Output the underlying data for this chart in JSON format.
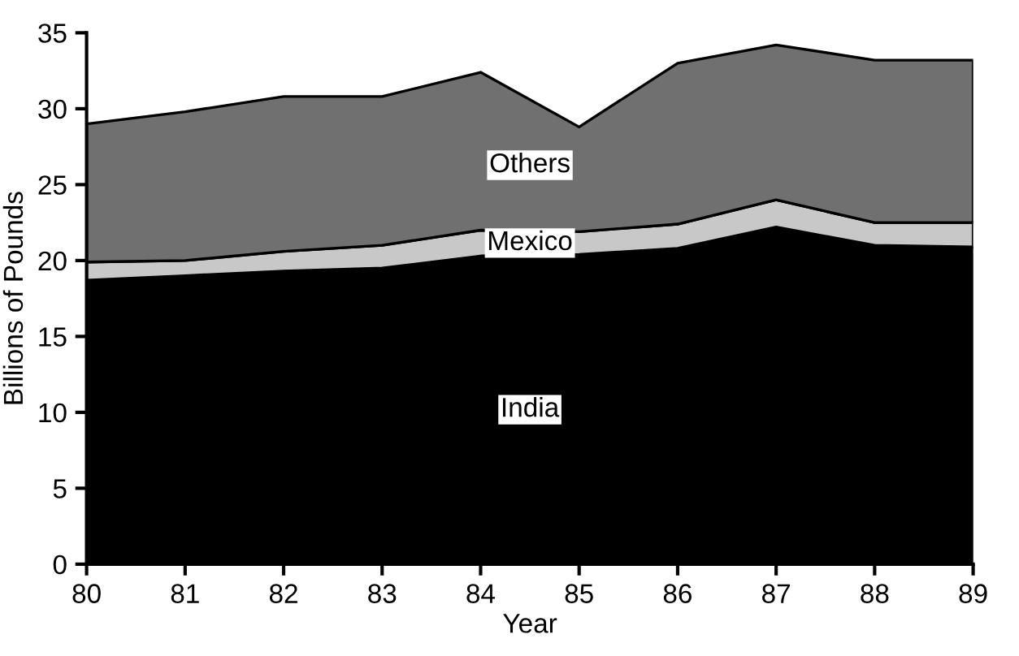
{
  "chart_data": {
    "type": "area",
    "stacked": true,
    "xlabel": "Year",
    "ylabel": "Billions of Pounds",
    "x": [
      80,
      81,
      82,
      83,
      84,
      85,
      86,
      87,
      88,
      89
    ],
    "xlim": [
      80,
      89
    ],
    "xticks": [
      80,
      81,
      82,
      83,
      84,
      85,
      86,
      87,
      88,
      89
    ],
    "ylim": [
      0,
      35
    ],
    "yticks": [
      0,
      5,
      10,
      15,
      20,
      25,
      30,
      35
    ],
    "series": [
      {
        "name": "India",
        "color": "#000000",
        "values": [
          18.7,
          19.0,
          19.3,
          19.5,
          20.3,
          20.4,
          20.8,
          22.2,
          21.0,
          20.9
        ]
      },
      {
        "name": "Mexico",
        "color": "#c8c8c8",
        "values": [
          1.2,
          1.0,
          1.3,
          1.5,
          1.7,
          1.5,
          1.6,
          1.8,
          1.5,
          1.6
        ]
      },
      {
        "name": "Others",
        "color": "#707070",
        "values": [
          9.1,
          9.8,
          10.2,
          9.8,
          10.4,
          6.9,
          10.6,
          10.2,
          10.7,
          10.7
        ]
      }
    ]
  }
}
